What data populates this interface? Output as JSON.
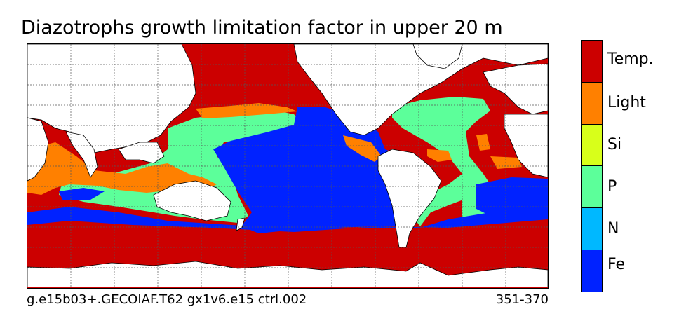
{
  "title": "Diazotrophs growth limitation factor in upper 20 m",
  "footer": {
    "run_id": "g.e15b03+.GECOIAF.T62 gx1v6.e15 ctrl.002",
    "years": "351-370"
  },
  "colorbar": {
    "categories": [
      {
        "label": "Temp.",
        "color": "#cc0000"
      },
      {
        "label": "Light",
        "color": "#ff8000"
      },
      {
        "label": "Si",
        "color": "#d8ff1a"
      },
      {
        "label": "P",
        "color": "#5cff9a"
      },
      {
        "label": "N",
        "color": "#00b8ff"
      },
      {
        "label": "Fe",
        "color": "#0022ff"
      }
    ]
  },
  "map": {
    "land_color": "#ffffff",
    "grid": true,
    "coastline_color": "#000000"
  }
}
